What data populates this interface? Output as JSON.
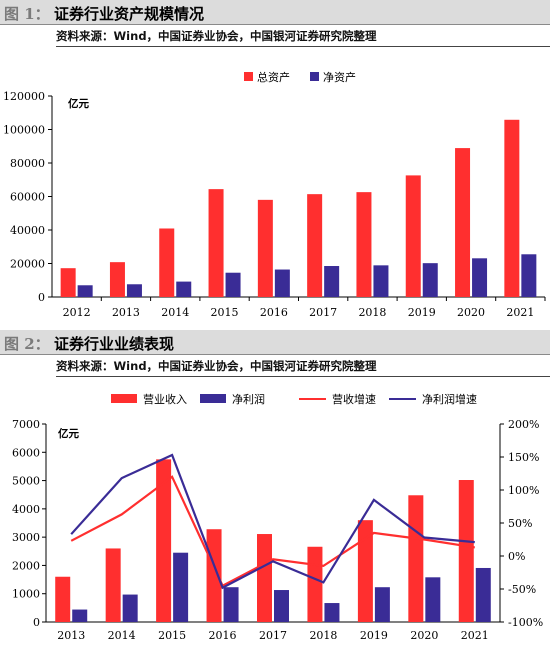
{
  "figures": [
    {
      "number": "图 1：",
      "title": "证券行业资产规模情况",
      "source": "资料来源：Wind，中国证券业协会，中国银河证券研究院整理"
    },
    {
      "number": "图 2：",
      "title": "证券行业业绩表现",
      "source": "资料来源：Wind，中国证券业协会，中国银河证券研究院整理"
    }
  ],
  "colors": {
    "red": "#ff2f2f",
    "navy": "#3a2c96"
  },
  "chart_data": [
    {
      "type": "bar",
      "unit_label": "亿元",
      "categories": [
        "2012",
        "2013",
        "2014",
        "2015",
        "2016",
        "2017",
        "2018",
        "2019",
        "2020",
        "2021"
      ],
      "series": [
        {
          "name": "总资产",
          "values": [
            17200,
            20800,
            40900,
            64400,
            58000,
            61400,
            62600,
            72600,
            88900,
            105800
          ]
        },
        {
          "name": "净资产",
          "values": [
            7000,
            7600,
            9200,
            14500,
            16400,
            18500,
            18900,
            20200,
            23100,
            25500
          ]
        }
      ],
      "y_ticks": [
        "0",
        "20000",
        "40000",
        "60000",
        "80000",
        "100000",
        "120000"
      ],
      "ylim": [
        0,
        120000
      ],
      "legend_position": "top-right"
    },
    {
      "type": "bar",
      "unit_label": "亿元",
      "categories": [
        "2013",
        "2014",
        "2015",
        "2016",
        "2017",
        "2018",
        "2019",
        "2020",
        "2021"
      ],
      "series": [
        {
          "name": "营业收入",
          "values": [
            1600,
            2600,
            5750,
            3280,
            3110,
            2660,
            3600,
            4480,
            5020
          ]
        },
        {
          "name": "净利润",
          "values": [
            440,
            970,
            2450,
            1230,
            1130,
            670,
            1230,
            1580,
            1910
          ]
        },
        {
          "name": "营收增速",
          "type": "line",
          "axis": "right",
          "values": [
            23,
            63,
            120,
            -45,
            -5,
            -15,
            35,
            25,
            13
          ]
        },
        {
          "name": "净利润增速",
          "type": "line",
          "axis": "right",
          "values": [
            33,
            118,
            153,
            -48,
            -8,
            -40,
            85,
            28,
            21
          ]
        }
      ],
      "y_ticks": [
        "0",
        "1000",
        "2000",
        "3000",
        "4000",
        "5000",
        "6000",
        "7000"
      ],
      "ylim": [
        0,
        7000
      ],
      "y2_ticks": [
        "-100%",
        "-50%",
        "0%",
        "50%",
        "100%",
        "150%",
        "200%"
      ],
      "y2lim": [
        -100,
        200
      ],
      "legend_position": "top"
    }
  ]
}
